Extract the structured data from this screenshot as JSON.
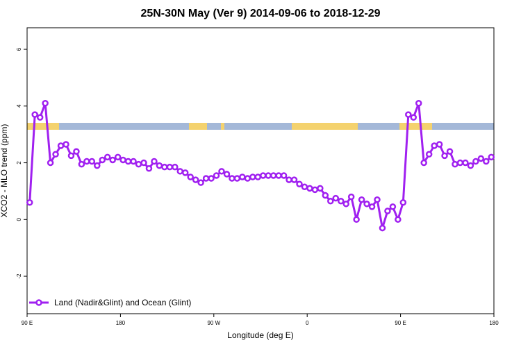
{
  "chart_data": {
    "type": "line",
    "title": "25N-30N May (Ver 9)   2014-09-06 to 2018-12-29",
    "x_label": "Longitude (deg E)",
    "y_label": "XCO2 - MLO trend (ppm)",
    "x": [
      92.5,
      97.5,
      102.5,
      107.5,
      112.5,
      117.5,
      122.5,
      127.5,
      132.5,
      137.5,
      142.5,
      147.5,
      152.5,
      157.5,
      162.5,
      167.5,
      172.5,
      177.5,
      182.5,
      187.5,
      192.5,
      197.5,
      202.5,
      207.5,
      212.5,
      217.5,
      222.5,
      227.5,
      232.5,
      237.5,
      242.5,
      247.5,
      252.5,
      257.5,
      262.5,
      267.5,
      272.5,
      277.5,
      282.5,
      287.5,
      292.5,
      297.5,
      302.5,
      307.5,
      312.5,
      317.5,
      322.5,
      327.5,
      332.5,
      337.5,
      342.5,
      347.5,
      352.5,
      357.5,
      362.5,
      367.5,
      372.5,
      377.5,
      382.5,
      387.5,
      392.5,
      397.5,
      402.5,
      407.5,
      412.5,
      417.5,
      422.5,
      427.5,
      432.5,
      437.5,
      442.5,
      447.5,
      452.5,
      457.5,
      462.5,
      467.5,
      472.5,
      477.5,
      482.5,
      487.5,
      492.5,
      497.5,
      502.5,
      507.5,
      512.5,
      517.5,
      522.5,
      527.5,
      532.5,
      537.5
    ],
    "series": [
      {
        "name": "Land (Nadir&Glint) and Ocean (Glint)",
        "color": "#a020f0",
        "values": [
          0.6,
          3.7,
          3.6,
          4.1,
          2.0,
          2.3,
          2.6,
          2.65,
          2.25,
          2.4,
          1.95,
          2.05,
          2.05,
          1.9,
          2.1,
          2.2,
          2.1,
          2.2,
          2.1,
          2.05,
          2.05,
          1.95,
          2.0,
          1.8,
          2.05,
          1.9,
          1.85,
          1.85,
          1.85,
          1.7,
          1.65,
          1.5,
          1.4,
          1.3,
          1.45,
          1.45,
          1.55,
          1.7,
          1.6,
          1.45,
          1.45,
          1.5,
          1.45,
          1.5,
          1.5,
          1.55,
          1.55,
          1.55,
          1.55,
          1.55,
          1.4,
          1.4,
          1.25,
          1.15,
          1.1,
          1.05,
          1.1,
          0.85,
          0.65,
          0.75,
          0.65,
          0.55,
          0.8,
          0.0,
          0.7,
          0.55,
          0.45,
          0.7,
          -0.3,
          0.3,
          0.45,
          0.0,
          0.6,
          3.7,
          3.6,
          4.1,
          2.0,
          2.3,
          2.6,
          2.65,
          2.25,
          2.4,
          1.95,
          2.0,
          2.0,
          1.9,
          2.05,
          2.15,
          2.05,
          2.2
        ]
      }
    ],
    "xlim": [
      90,
      540
    ],
    "xticks": [
      {
        "value": 90,
        "label": "90 E"
      },
      180,
      {
        "value": 270,
        "label": "90 W"
      },
      {
        "value": 360,
        "label": "0"
      },
      {
        "value": 450,
        "label": "90 E"
      },
      {
        "value": 540,
        "label": "180"
      }
    ],
    "ylim": [
      -3.32,
      6.76
    ],
    "yticks": [
      -2,
      0,
      2,
      4,
      6
    ],
    "legend": "bottom-left"
  }
}
